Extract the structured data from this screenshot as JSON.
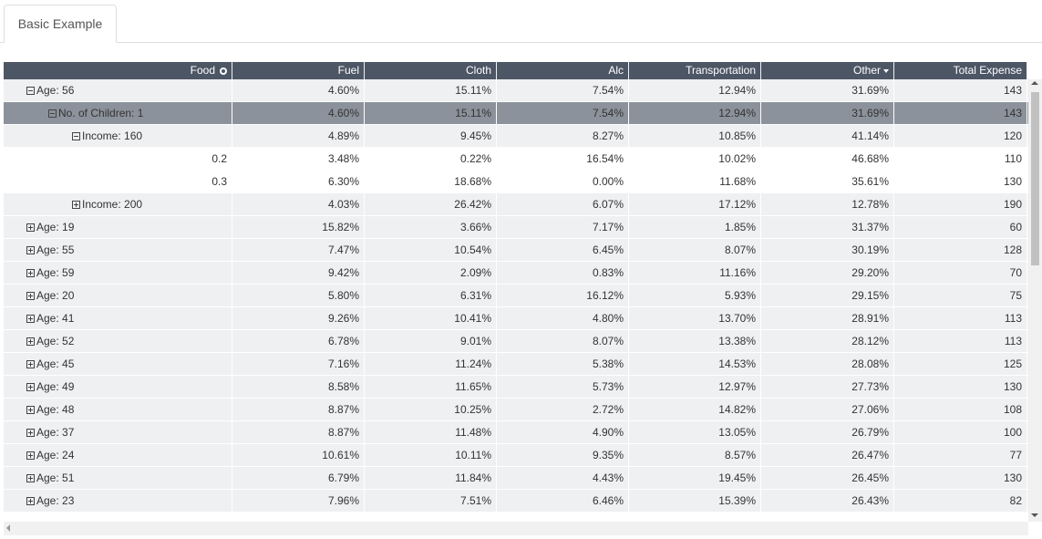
{
  "tab": "Basic Example",
  "table": {
    "columns": [
      "Food",
      "Fuel",
      "Cloth",
      "Alc",
      "Transportation",
      "Other",
      "Total Expense"
    ],
    "rows": [
      {
        "label": "Age: 56",
        "cells": [
          "4.60%",
          "15.11%",
          "7.54%",
          "12.94%",
          "31.69%",
          "143"
        ]
      },
      {
        "label": "No. of Children: 1",
        "cells": [
          "4.60%",
          "15.11%",
          "7.54%",
          "12.94%",
          "31.69%",
          "143"
        ]
      },
      {
        "label": "Income: 160",
        "cells": [
          "4.89%",
          "9.45%",
          "8.27%",
          "10.85%",
          "41.14%",
          "120"
        ]
      },
      {
        "label": "0.2",
        "cells": [
          "3.48%",
          "0.22%",
          "16.54%",
          "10.02%",
          "46.68%",
          "110"
        ]
      },
      {
        "label": "0.3",
        "cells": [
          "6.30%",
          "18.68%",
          "0.00%",
          "11.68%",
          "35.61%",
          "130"
        ]
      },
      {
        "label": "Income: 200",
        "cells": [
          "4.03%",
          "26.42%",
          "6.07%",
          "17.12%",
          "12.78%",
          "190"
        ]
      },
      {
        "label": "Age: 19",
        "cells": [
          "15.82%",
          "3.66%",
          "7.17%",
          "1.85%",
          "31.37%",
          "60"
        ]
      },
      {
        "label": "Age: 55",
        "cells": [
          "7.47%",
          "10.54%",
          "6.45%",
          "8.07%",
          "30.19%",
          "128"
        ]
      },
      {
        "label": "Age: 59",
        "cells": [
          "9.42%",
          "2.09%",
          "0.83%",
          "11.16%",
          "29.20%",
          "70"
        ]
      },
      {
        "label": "Age: 20",
        "cells": [
          "5.80%",
          "6.31%",
          "16.12%",
          "5.93%",
          "29.15%",
          "75"
        ]
      },
      {
        "label": "Age: 41",
        "cells": [
          "9.26%",
          "10.41%",
          "4.80%",
          "13.70%",
          "28.91%",
          "113"
        ]
      },
      {
        "label": "Age: 52",
        "cells": [
          "6.78%",
          "9.01%",
          "8.07%",
          "13.38%",
          "28.12%",
          "113"
        ]
      },
      {
        "label": "Age: 45",
        "cells": [
          "7.16%",
          "11.24%",
          "5.38%",
          "14.53%",
          "28.08%",
          "125"
        ]
      },
      {
        "label": "Age: 49",
        "cells": [
          "8.58%",
          "11.65%",
          "5.73%",
          "12.97%",
          "27.73%",
          "130"
        ]
      },
      {
        "label": "Age: 48",
        "cells": [
          "8.87%",
          "10.25%",
          "2.72%",
          "14.82%",
          "27.06%",
          "108"
        ]
      },
      {
        "label": "Age: 37",
        "cells": [
          "8.87%",
          "11.48%",
          "4.90%",
          "13.05%",
          "26.79%",
          "100"
        ]
      },
      {
        "label": "Age: 24",
        "cells": [
          "10.61%",
          "10.11%",
          "9.35%",
          "8.57%",
          "26.47%",
          "77"
        ]
      },
      {
        "label": "Age: 51",
        "cells": [
          "6.79%",
          "11.84%",
          "4.43%",
          "19.45%",
          "26.45%",
          "130"
        ]
      },
      {
        "label": "Age: 23",
        "cells": [
          "7.96%",
          "7.51%",
          "6.46%",
          "15.39%",
          "26.43%",
          "82"
        ]
      }
    ]
  }
}
